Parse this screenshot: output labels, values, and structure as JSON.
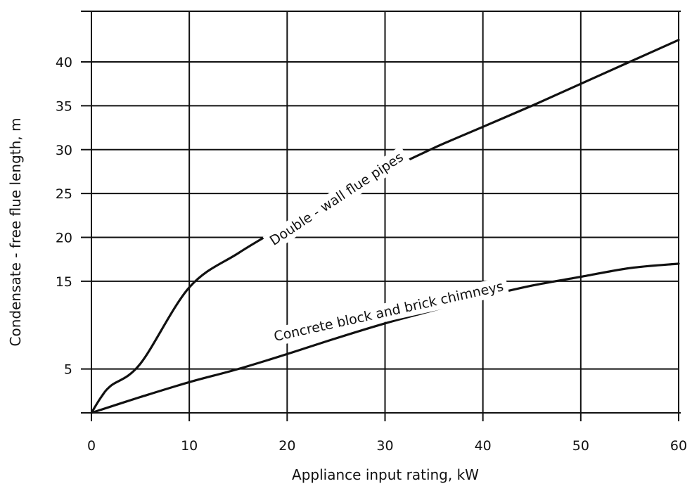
{
  "chart_data": {
    "type": "line",
    "title": "",
    "xlabel": "Appliance input rating, kW",
    "ylabel": "Condensate - free flue length, m",
    "xlim": [
      0,
      60
    ],
    "ylim": [
      0,
      45
    ],
    "x_ticks": [
      0,
      10,
      20,
      30,
      40,
      50,
      60
    ],
    "y_ticks": [
      5,
      15,
      20,
      25,
      30,
      35,
      40
    ],
    "y_tick_labels": [
      "5",
      "15",
      "20",
      "25",
      "30",
      "35",
      "40"
    ],
    "grid": true,
    "series": [
      {
        "name": "Double - wall flue pipes",
        "x": [
          0,
          1,
          2,
          5,
          10,
          15,
          20,
          25,
          30,
          35,
          40,
          45,
          50,
          55,
          60
        ],
        "y": [
          0,
          1.8,
          3.1,
          5.6,
          14.3,
          18.2,
          21.5,
          24.5,
          27.5,
          30.2,
          32.6,
          35.0,
          37.5,
          40.0,
          42.5
        ]
      },
      {
        "name": "Concrete block and brick chimneys",
        "x": [
          0,
          5,
          10,
          15,
          20,
          25,
          30,
          35,
          40,
          45,
          50,
          55,
          60
        ],
        "y": [
          0,
          1.8,
          3.5,
          5.0,
          6.7,
          8.5,
          10.2,
          11.7,
          13.2,
          14.5,
          15.5,
          16.5,
          17.0
        ]
      }
    ]
  }
}
